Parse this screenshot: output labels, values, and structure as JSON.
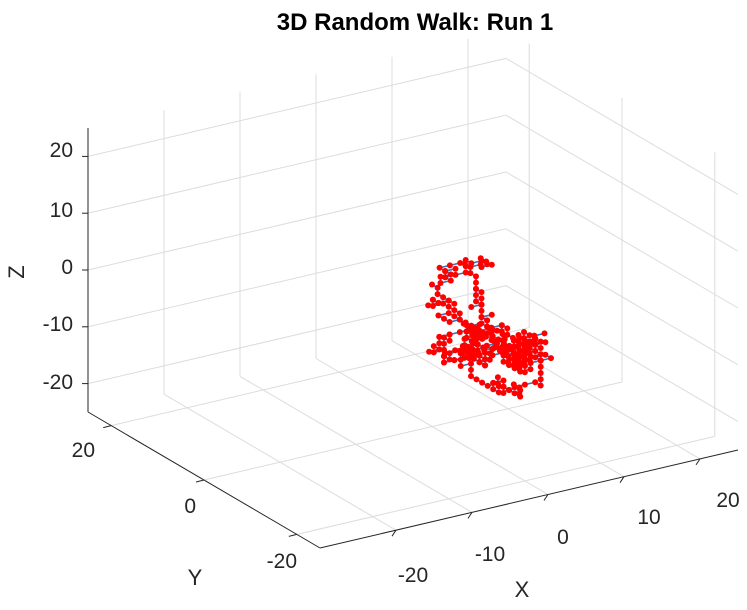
{
  "chart_data": {
    "type": "line3d",
    "title": "3D Random Walk: Run 1",
    "xlabel": "X",
    "ylabel": "Y",
    "zlabel": "Z",
    "xlim": [
      -30,
      25
    ],
    "ylim": [
      -25,
      25
    ],
    "zlim": [
      -25,
      25
    ],
    "xticks": [
      "-20",
      "-10",
      "0",
      "10",
      "20"
    ],
    "yticks": [
      "-20",
      "0",
      "20"
    ],
    "zticks": [
      "-20",
      "-10",
      "0",
      "10",
      "20"
    ],
    "grid": true,
    "line_color": "#3a72b8",
    "marker_color": "#ff0000",
    "steps": 400,
    "start": [
      0,
      0,
      0
    ],
    "step_size": 1
  }
}
